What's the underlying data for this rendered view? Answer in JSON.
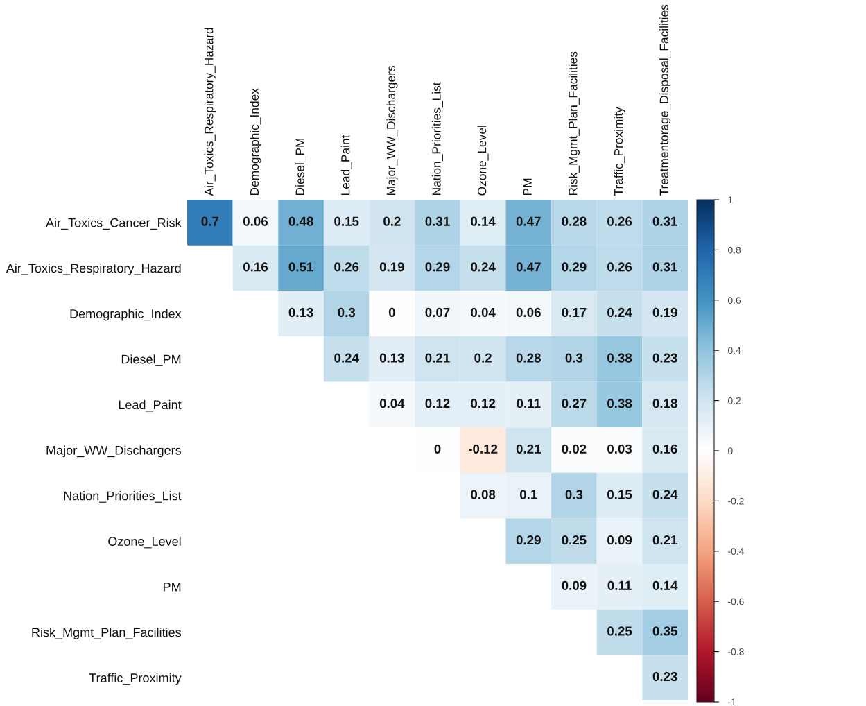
{
  "chart_data": {
    "type": "heatmap",
    "categories": [
      "Air_Toxics_Respiratory_Hazard",
      "Demographic_Index",
      "Diesel_PM",
      "Lead_Paint",
      "Major_WW_Dischargers",
      "Nation_Priorities_List",
      "Ozone_Level",
      "PM",
      "Risk_Mgmt_Plan_Facilities",
      "Traffic_Proximity",
      "Treatmentorage_Disposal_Facilities"
    ],
    "y_categories": [
      "Air_Toxics_Cancer_Risk",
      "Air_Toxics_Respiratory_Hazard",
      "Demographic_Index",
      "Diesel_PM",
      "Lead_Paint",
      "Major_WW_Dischargers",
      "Nation_Priorities_List",
      "Ozone_Level",
      "PM",
      "Risk_Mgmt_Plan_Facilities",
      "Traffic_Proximity"
    ],
    "cells": [
      [
        0.7,
        0.06,
        0.48,
        0.15,
        0.2,
        0.31,
        0.14,
        0.47,
        0.28,
        0.26,
        0.31
      ],
      [
        null,
        0.16,
        0.51,
        0.26,
        0.19,
        0.29,
        0.24,
        0.47,
        0.29,
        0.26,
        0.31
      ],
      [
        null,
        null,
        0.13,
        0.3,
        0,
        0.07,
        0.04,
        0.06,
        0.17,
        0.24,
        0.19
      ],
      [
        null,
        null,
        null,
        0.24,
        0.13,
        0.21,
        0.2,
        0.28,
        0.3,
        0.38,
        0.23
      ],
      [
        null,
        null,
        null,
        null,
        0.04,
        0.12,
        0.12,
        0.11,
        0.27,
        0.38,
        0.18
      ],
      [
        null,
        null,
        null,
        null,
        null,
        0,
        -0.12,
        0.21,
        0.02,
        0.03,
        0.16
      ],
      [
        null,
        null,
        null,
        null,
        null,
        null,
        0.08,
        0.1,
        0.3,
        0.15,
        0.24
      ],
      [
        null,
        null,
        null,
        null,
        null,
        null,
        null,
        0.29,
        0.25,
        0.09,
        0.21
      ],
      [
        null,
        null,
        null,
        null,
        null,
        null,
        null,
        null,
        0.09,
        0.11,
        0.14
      ],
      [
        null,
        null,
        null,
        null,
        null,
        null,
        null,
        null,
        null,
        0.25,
        0.35
      ],
      [
        null,
        null,
        null,
        null,
        null,
        null,
        null,
        null,
        null,
        null,
        0.23
      ]
    ],
    "clim": [
      -1,
      1
    ],
    "cticks": [
      -1,
      -0.8,
      -0.6,
      -0.4,
      -0.2,
      0,
      0.2,
      0.4,
      0.6,
      0.8,
      1
    ],
    "data_labels": true
  }
}
